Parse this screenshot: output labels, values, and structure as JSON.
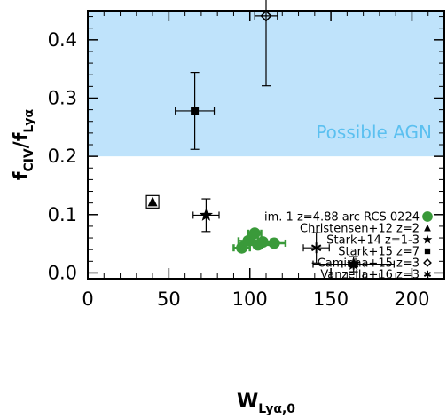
{
  "chart_data": {
    "type": "scatter",
    "xlabel": {
      "main": "W",
      "sub": "Lyα,0"
    },
    "ylabel": {
      "num_main": "f",
      "num_sub": "CIV",
      "den_main": "f",
      "den_sub": "Lyα"
    },
    "xlim": [
      0,
      220
    ],
    "ylim": [
      -0.01,
      0.45
    ],
    "x_ticks": [
      "0",
      "50",
      "100",
      "150",
      "200"
    ],
    "y_ticks": [
      "0.0",
      "0.1",
      "0.2",
      "0.3",
      "0.4"
    ],
    "grid": false,
    "legend_position": "right-middle",
    "shaded_region": {
      "label": "Possible AGN",
      "y_min": 0.2,
      "y_max": 0.45,
      "color": "#bfe3fb",
      "label_color": "#5bc0f0"
    },
    "series": [
      {
        "name": "im. 1 z=4.88 arc RCS 0224",
        "marker": "circle",
        "color": "#3a9a3a",
        "points": [
          {
            "x": 95,
            "y": 0.043,
            "xerr": 5,
            "yerr": 0.004
          },
          {
            "x": 99,
            "y": 0.055,
            "xerr": 6,
            "yerr": 0.005
          },
          {
            "x": 103,
            "y": 0.068,
            "xerr": 4,
            "yerr": 0.004
          },
          {
            "x": 105,
            "y": 0.048,
            "xerr": 10,
            "yerr": 0.005
          },
          {
            "x": 108,
            "y": 0.053,
            "xerr": 5,
            "yerr": 0.004
          },
          {
            "x": 115,
            "y": 0.051,
            "xerr": 7,
            "yerr": 0.004
          }
        ]
      },
      {
        "name": "Christensen+12 z=2",
        "marker": "triangle",
        "color": "#000000",
        "boxed": true,
        "points": [
          {
            "x": 40,
            "y": 0.122,
            "xerr": 0,
            "yerr": 0
          }
        ]
      },
      {
        "name": "Stark+14 z=1-3",
        "marker": "star",
        "color": "#000000",
        "points": [
          {
            "x": 73,
            "y": 0.099,
            "xerr": 8,
            "yerr": 0.028
          },
          {
            "x": 164,
            "y": 0.015,
            "xerr": 7,
            "yerr": 0.013
          }
        ]
      },
      {
        "name": "Stark+15 z=7",
        "marker": "square",
        "color": "#000000",
        "points": [
          {
            "x": 66,
            "y": 0.278,
            "xerr": 12,
            "yerr": 0.066
          }
        ]
      },
      {
        "name": "Caminha+15 z=3",
        "marker": "diamond-open",
        "color": "#000000",
        "points": [
          {
            "x": 110,
            "y": 0.441,
            "xerr": 7,
            "yerr": 0.12
          }
        ]
      },
      {
        "name": "Vanzella+16 z=3",
        "marker": "asterisk",
        "color": "#000000",
        "points": [
          {
            "x": 141,
            "y": 0.043,
            "xerr": 8,
            "yerr": 0.026
          },
          {
            "x": 164,
            "y": 0.015,
            "xerr": 25,
            "yerr": 0
          }
        ]
      }
    ]
  }
}
